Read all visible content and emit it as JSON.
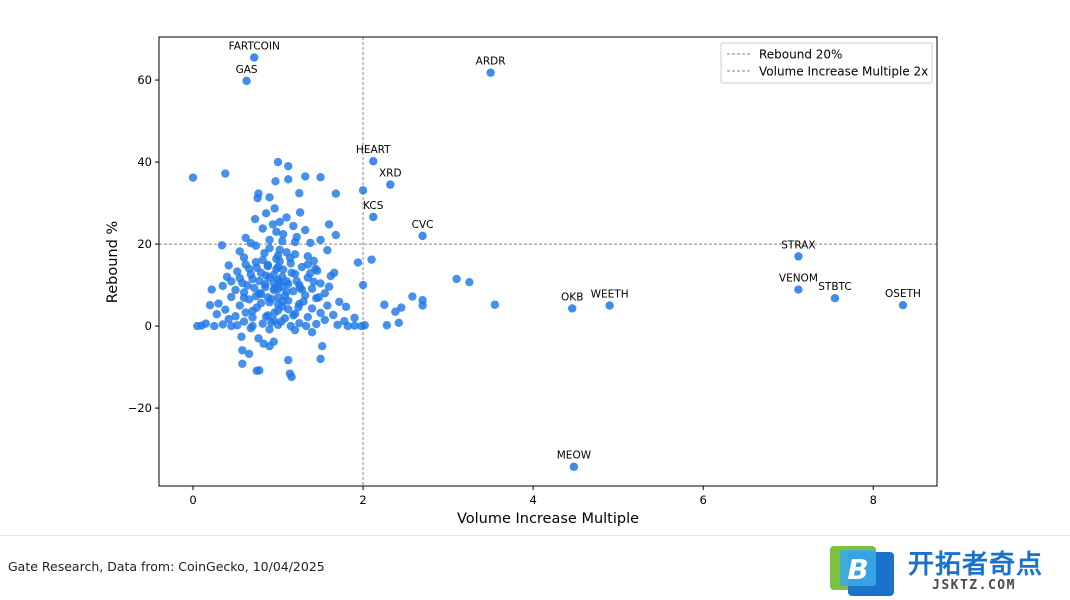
{
  "footer": {
    "source": "Gate Research, Data from: CoinGecko, 10/04/2025"
  },
  "logo": {
    "mark_letter": "B",
    "name": "开拓者奇点",
    "url": "JSKTZ.COM"
  },
  "colors": {
    "point": "#1f77e6",
    "reference_line": "#888888",
    "axis": "#000000"
  },
  "chart_data": {
    "type": "scatter",
    "title": "",
    "xlabel": "Volume Increase Multiple",
    "ylabel": "Rebound %",
    "xlim": [
      -0.4,
      8.75
    ],
    "ylim": [
      -39,
      70.5
    ],
    "xticks": [
      0,
      2,
      4,
      6,
      8
    ],
    "yticks": [
      -20,
      0,
      20,
      40,
      60
    ],
    "ytick_labels": [
      "−20",
      "0",
      "20",
      "40",
      "60"
    ],
    "grid": false,
    "legend": {
      "position": "top-right",
      "entries": [
        "Rebound 20%",
        "Volume Increase Multiple 2x"
      ]
    },
    "reference_lines": [
      {
        "orientation": "horizontal",
        "value": 20,
        "label": "Rebound 20%"
      },
      {
        "orientation": "vertical",
        "value": 2,
        "label": "Volume Increase Multiple 2x"
      }
    ],
    "labeled_points": [
      {
        "name": "FARTCOIN",
        "x": 0.72,
        "y": 65.5
      },
      {
        "name": "GAS",
        "x": 0.63,
        "y": 59.8
      },
      {
        "name": "ARDR",
        "x": 3.5,
        "y": 61.8
      },
      {
        "name": "HEART",
        "x": 2.12,
        "y": 40.2
      },
      {
        "name": "XRD",
        "x": 2.32,
        "y": 34.5
      },
      {
        "name": "KCS",
        "x": 2.12,
        "y": 26.6
      },
      {
        "name": "CVC",
        "x": 2.7,
        "y": 22.0
      },
      {
        "name": "STRAX",
        "x": 7.12,
        "y": 17.0
      },
      {
        "name": "VENOM",
        "x": 7.12,
        "y": 8.9
      },
      {
        "name": "STBTC",
        "x": 7.55,
        "y": 6.8
      },
      {
        "name": "OSETH",
        "x": 8.35,
        "y": 5.1
      },
      {
        "name": "OKB",
        "x": 4.46,
        "y": 4.3
      },
      {
        "name": "WEETH",
        "x": 4.9,
        "y": 5.0
      },
      {
        "name": "MEOW",
        "x": 4.48,
        "y": -34.3
      }
    ],
    "points": [
      [
        0.0,
        36.2
      ],
      [
        0.38,
        37.2
      ],
      [
        1.0,
        40.0
      ],
      [
        1.12,
        39.0
      ],
      [
        1.5,
        36.3
      ],
      [
        1.32,
        36.5
      ],
      [
        0.97,
        35.3
      ],
      [
        1.12,
        35.8
      ],
      [
        2.0,
        33.1
      ],
      [
        1.68,
        32.3
      ],
      [
        1.25,
        32.4
      ],
      [
        0.77,
        32.3
      ],
      [
        0.76,
        31.2
      ],
      [
        0.9,
        31.4
      ],
      [
        0.96,
        28.7
      ],
      [
        1.26,
        27.7
      ],
      [
        0.86,
        27.5
      ],
      [
        1.1,
        26.5
      ],
      [
        0.73,
        26.1
      ],
      [
        1.02,
        25.4
      ],
      [
        1.6,
        24.8
      ],
      [
        1.18,
        24.4
      ],
      [
        0.82,
        23.8
      ],
      [
        1.32,
        23.4
      ],
      [
        0.98,
        23.0
      ],
      [
        1.68,
        22.2
      ],
      [
        1.22,
        21.7
      ],
      [
        0.62,
        21.5
      ],
      [
        1.5,
        21.0
      ],
      [
        0.9,
        21.0
      ],
      [
        1.05,
        20.7
      ],
      [
        1.38,
        20.3
      ],
      [
        0.34,
        19.7
      ],
      [
        0.74,
        19.6
      ],
      [
        1.58,
        18.5
      ],
      [
        1.02,
        18.6
      ],
      [
        0.55,
        18.2
      ],
      [
        0.84,
        17.8
      ],
      [
        1.2,
        17.5
      ],
      [
        1.35,
        17.0
      ],
      [
        0.6,
        16.7
      ],
      [
        0.98,
        16.4
      ],
      [
        2.1,
        16.2
      ],
      [
        1.42,
        15.9
      ],
      [
        0.74,
        15.6
      ],
      [
        1.94,
        15.5
      ],
      [
        1.15,
        15.3
      ],
      [
        0.42,
        14.8
      ],
      [
        0.88,
        14.6
      ],
      [
        1.28,
        14.4
      ],
      [
        0.66,
        14.0
      ],
      [
        1.06,
        13.8
      ],
      [
        1.46,
        13.5
      ],
      [
        0.52,
        13.3
      ],
      [
        0.8,
        13.0
      ],
      [
        1.2,
        12.7
      ],
      [
        0.95,
        12.5
      ],
      [
        1.62,
        12.2
      ],
      [
        0.4,
        12.0
      ],
      [
        1.35,
        11.8
      ],
      [
        0.7,
        11.5
      ],
      [
        3.1,
        11.5
      ],
      [
        1.0,
        11.2
      ],
      [
        1.1,
        10.9
      ],
      [
        3.25,
        10.7
      ],
      [
        0.58,
        10.5
      ],
      [
        1.5,
        10.4
      ],
      [
        0.85,
        10.2
      ],
      [
        1.25,
        10.0
      ],
      [
        2.0,
        10.0
      ],
      [
        0.35,
        9.8
      ],
      [
        1.05,
        9.6
      ],
      [
        0.72,
        9.3
      ],
      [
        1.4,
        9.1
      ],
      [
        0.22,
        8.9
      ],
      [
        0.95,
        8.8
      ],
      [
        1.18,
        8.5
      ],
      [
        0.6,
        8.2
      ],
      [
        1.55,
        8.0
      ],
      [
        0.8,
        7.8
      ],
      [
        1.32,
        7.5
      ],
      [
        2.58,
        7.2
      ],
      [
        0.45,
        7.1
      ],
      [
        1.0,
        7.0
      ],
      [
        1.45,
        6.8
      ],
      [
        0.66,
        6.5
      ],
      [
        2.7,
        6.3
      ],
      [
        1.12,
        6.2
      ],
      [
        1.72,
        5.9
      ],
      [
        0.9,
        5.8
      ],
      [
        0.3,
        5.5
      ],
      [
        1.25,
        5.4
      ],
      [
        2.25,
        5.2
      ],
      [
        3.55,
        5.2
      ],
      [
        0.55,
        5.0
      ],
      [
        1.58,
        5.0
      ],
      [
        2.7,
        5.0
      ],
      [
        0.2,
        5.1
      ],
      [
        1.05,
        4.8
      ],
      [
        1.8,
        4.7
      ],
      [
        0.75,
        4.5
      ],
      [
        2.45,
        4.5
      ],
      [
        1.4,
        4.3
      ],
      [
        0.38,
        4.0
      ],
      [
        1.0,
        3.8
      ],
      [
        2.38,
        3.5
      ],
      [
        0.62,
        3.3
      ],
      [
        1.5,
        3.2
      ],
      [
        1.2,
        3.0
      ],
      [
        0.28,
        2.9
      ],
      [
        1.65,
        2.7
      ],
      [
        0.88,
        2.6
      ],
      [
        0.5,
        2.4
      ],
      [
        1.35,
        2.2
      ],
      [
        0.7,
        2.1
      ],
      [
        1.9,
        2.0
      ],
      [
        1.08,
        1.9
      ],
      [
        0.42,
        1.7
      ],
      [
        1.55,
        1.5
      ],
      [
        0.95,
        1.4
      ],
      [
        1.78,
        1.2
      ],
      [
        0.6,
        1.1
      ],
      [
        2.42,
        0.8
      ],
      [
        1.25,
        0.7
      ],
      [
        0.82,
        0.6
      ],
      [
        0.15,
        0.6
      ],
      [
        1.45,
        0.5
      ],
      [
        0.35,
        0.4
      ],
      [
        1.7,
        0.3
      ],
      [
        1.0,
        0.3
      ],
      [
        2.28,
        0.2
      ],
      [
        0.52,
        0.2
      ],
      [
        1.9,
        0.1
      ],
      [
        0.05,
        0.0
      ],
      [
        0.1,
        0.1
      ],
      [
        0.25,
        0.0
      ],
      [
        0.45,
        0.0
      ],
      [
        0.7,
        0.0
      ],
      [
        1.15,
        0.0
      ],
      [
        1.33,
        0.0
      ],
      [
        1.82,
        0.0
      ],
      [
        1.98,
        0.0
      ],
      [
        2.02,
        0.2
      ],
      [
        0.68,
        -0.5
      ],
      [
        0.9,
        -0.8
      ],
      [
        1.2,
        -1.0
      ],
      [
        0.57,
        -2.6
      ],
      [
        0.77,
        -3.0
      ],
      [
        0.95,
        -3.8
      ],
      [
        0.83,
        -4.3
      ],
      [
        0.9,
        -4.9
      ],
      [
        1.52,
        -4.9
      ],
      [
        0.58,
        -5.9
      ],
      [
        0.66,
        -6.8
      ],
      [
        1.5,
        -8.0
      ],
      [
        1.12,
        -8.3
      ],
      [
        0.58,
        -9.2
      ],
      [
        0.78,
        -10.8
      ],
      [
        0.75,
        -10.9
      ],
      [
        1.14,
        -11.6
      ],
      [
        1.16,
        -12.4
      ],
      [
        1.4,
        -1.5
      ],
      [
        1.0,
        9.0
      ],
      [
        0.95,
        10.5
      ],
      [
        1.05,
        12.0
      ],
      [
        0.9,
        11.8
      ],
      [
        1.1,
        8.4
      ],
      [
        0.85,
        9.5
      ],
      [
        1.0,
        5.3
      ],
      [
        0.92,
        6.6
      ],
      [
        1.08,
        7.4
      ],
      [
        0.78,
        11.0
      ],
      [
        1.16,
        13.0
      ],
      [
        0.88,
        14.9
      ],
      [
        1.02,
        15.8
      ],
      [
        0.96,
        3.3
      ],
      [
        1.12,
        4.1
      ],
      [
        0.74,
        7.3
      ],
      [
        1.28,
        8.9
      ],
      [
        0.68,
        12.6
      ],
      [
        1.22,
        11.0
      ],
      [
        0.82,
        16.1
      ],
      [
        1.3,
        6.0
      ],
      [
        0.64,
        9.9
      ],
      [
        1.38,
        12.9
      ],
      [
        0.98,
        13.9
      ],
      [
        1.04,
        1.1
      ],
      [
        0.86,
        2.3
      ],
      [
        1.18,
        2.6
      ],
      [
        0.9,
        19.0
      ],
      [
        1.1,
        18.0
      ],
      [
        0.75,
        14.2
      ],
      [
        1.0,
        17.2
      ],
      [
        0.8,
        5.6
      ],
      [
        1.24,
        4.6
      ],
      [
        0.7,
        3.7
      ],
      [
        1.42,
        10.8
      ],
      [
        0.6,
        6.9
      ],
      [
        1.48,
        7.0
      ],
      [
        0.55,
        11.7
      ],
      [
        1.6,
        9.6
      ],
      [
        0.5,
        8.8
      ],
      [
        1.35,
        15.0
      ],
      [
        0.45,
        10.9
      ],
      [
        1.66,
        13.0
      ],
      [
        0.92,
        0.9
      ],
      [
        1.06,
        22.4
      ],
      [
        0.94,
        24.8
      ],
      [
        1.2,
        20.5
      ],
      [
        0.68,
        20.2
      ],
      [
        1.44,
        14.0
      ],
      [
        0.62,
        15.0
      ],
      [
        1.14,
        16.6
      ],
      [
        0.86,
        12.3
      ],
      [
        1.0,
        14.4
      ],
      [
        0.78,
        8.0
      ],
      [
        1.26,
        9.3
      ],
      [
        1.12,
        10.3
      ],
      [
        0.88,
        7.0
      ],
      [
        1.06,
        6.1
      ],
      [
        0.96,
        9.2
      ],
      [
        1.02,
        10.7
      ]
    ]
  }
}
